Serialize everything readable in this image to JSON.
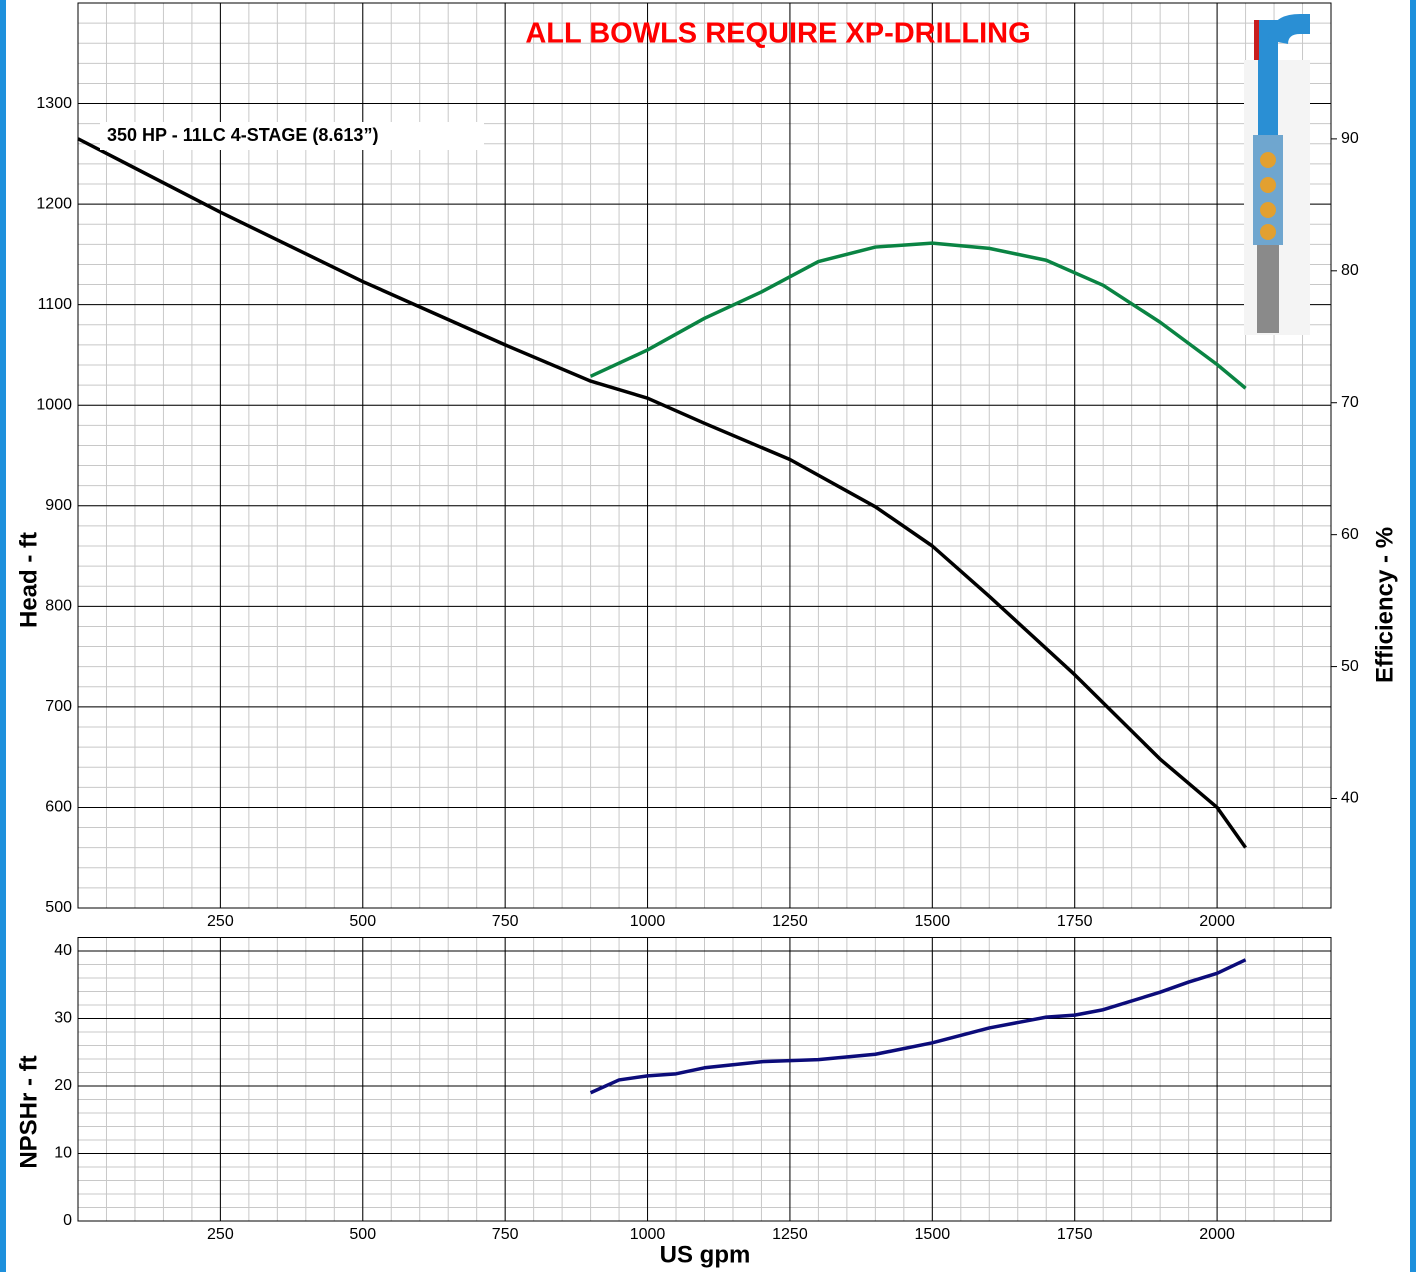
{
  "chart_data": [
    {
      "type": "line",
      "title": "ALL BOWLS REQUIRE XP-DRILLING",
      "annotation": "350 HP - 11LC 4-STAGE (8.613”)",
      "y_label": "Head - ft",
      "y2_label": "Efficiency - %",
      "xlim": [
        0,
        2200
      ],
      "xticks": [
        250,
        500,
        750,
        1000,
        1250,
        1500,
        1750,
        2000
      ],
      "ylim": [
        500,
        1400
      ],
      "yticks": [
        500,
        600,
        700,
        800,
        900,
        1000,
        1100,
        1200,
        1300
      ],
      "y2lim": [
        31.7,
        100.3
      ],
      "y2ticks": [
        40,
        50,
        60,
        70,
        80,
        90
      ],
      "grid": true,
      "series": [
        {
          "color": "#000000",
          "x": [
            0,
            250,
            500,
            750,
            900,
            1000,
            1100,
            1250,
            1400,
            1500,
            1600,
            1750,
            1900,
            2000,
            2050
          ],
          "values": [
            1265,
            1192,
            1123,
            1060,
            1024,
            1007,
            982,
            946,
            899,
            860,
            810,
            732,
            648,
            600,
            560
          ]
        },
        {
          "color": "#0a8443",
          "axis": "y2",
          "x": [
            900,
            1000,
            1100,
            1200,
            1300,
            1400,
            1500,
            1600,
            1700,
            1800,
            1900,
            2000,
            2050
          ],
          "values": [
            72.0,
            74.0,
            76.4,
            78.4,
            80.7,
            81.8,
            82.1,
            81.7,
            80.8,
            78.9,
            76.1,
            72.9,
            71.1
          ]
        }
      ]
    },
    {
      "type": "line",
      "y_label": "NPSHr - ft",
      "x_label": "US gpm",
      "xlim": [
        0,
        2200
      ],
      "xticks": [
        250,
        500,
        750,
        1000,
        1250,
        1500,
        1750,
        2000
      ],
      "ylim": [
        0,
        42
      ],
      "yticks": [
        0,
        10,
        20,
        30,
        40
      ],
      "grid": true,
      "series": [
        {
          "color": "#0c0c7a",
          "x": [
            900,
            950,
            1000,
            1050,
            1100,
            1200,
            1300,
            1400,
            1500,
            1600,
            1700,
            1750,
            1800,
            1900,
            1950,
            2000,
            2050
          ],
          "values": [
            19.0,
            20.9,
            21.5,
            21.8,
            22.7,
            23.6,
            23.9,
            24.7,
            26.4,
            28.6,
            30.2,
            30.5,
            31.3,
            33.9,
            35.4,
            36.7,
            38.7
          ]
        }
      ]
    }
  ]
}
